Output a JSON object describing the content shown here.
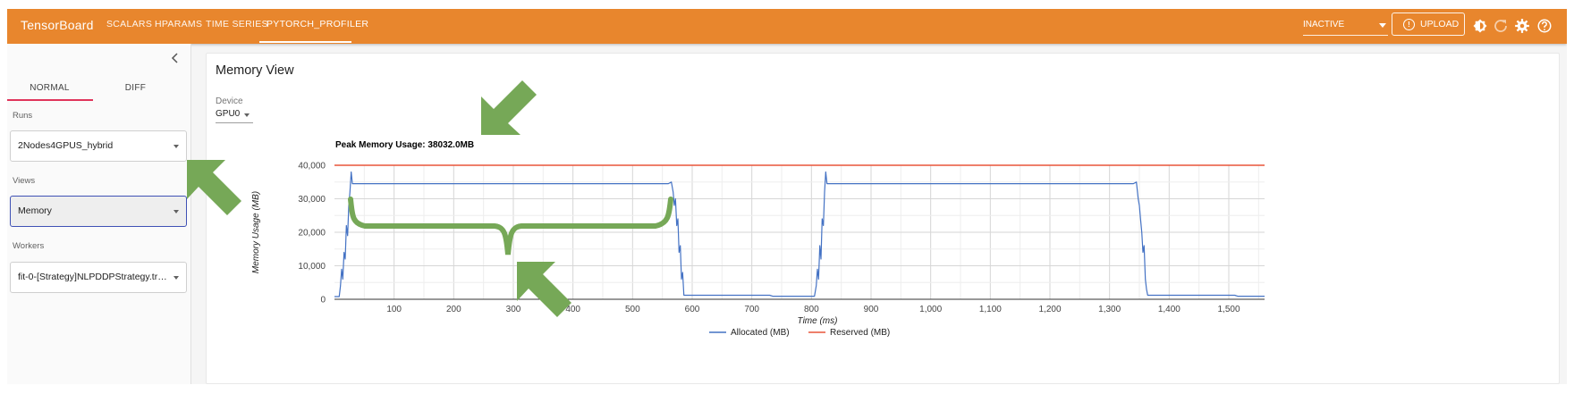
{
  "app": {
    "title": "TensorBoard"
  },
  "nav": {
    "tabs": [
      {
        "label": "SCALARS"
      },
      {
        "label": "HPARAMS"
      },
      {
        "label": "TIME SERIES"
      },
      {
        "label": "PYTORCH_PROFILER",
        "active": true
      }
    ]
  },
  "toolbar": {
    "status_value": "INACTIVE",
    "upload_label": "UPLOAD",
    "icons": [
      "brightness-icon",
      "refresh-icon",
      "settings-icon",
      "help-icon"
    ]
  },
  "sidebar": {
    "mode_tabs": [
      {
        "label": "NORMAL",
        "active": true
      },
      {
        "label": "DIFF"
      }
    ],
    "runs_label": "Runs",
    "runs_value": "2Nodes4GPUS_hybrid",
    "views_label": "Views",
    "views_value": "Memory",
    "workers_label": "Workers",
    "workers_value": "fit-0-[Strategy]NLPDDPStrategy.trai..."
  },
  "main": {
    "title": "Memory View",
    "device_label": "Device",
    "device_value": "GPU0",
    "peak_text": "Peak Memory Usage: 38032.0MB"
  },
  "colors": {
    "topbar": "#e8862d",
    "allocated": "#4472c4",
    "reserved": "#e8553a",
    "annotation": "#76a857",
    "focus": "#3f51b5",
    "tab_underline": "#e0345a"
  },
  "chart_data": {
    "type": "line",
    "xlabel": "Time (ms)",
    "ylabel": "Memory Usage (MB)",
    "xlim": [
      0,
      1560
    ],
    "ylim": [
      0,
      40000
    ],
    "x_ticks": [
      100,
      200,
      300,
      400,
      500,
      600,
      700,
      800,
      900,
      1000,
      1100,
      1200,
      1300,
      1400,
      1500
    ],
    "x_tick_labels": [
      "100",
      "200",
      "300",
      "400",
      "500",
      "600",
      "700",
      "800",
      "900",
      "1,000",
      "1,100",
      "1,200",
      "1,300",
      "1,400",
      "1,500"
    ],
    "y_ticks": [
      0,
      10000,
      20000,
      30000,
      40000
    ],
    "y_tick_labels": [
      "0",
      "10,000",
      "20,000",
      "30,000",
      "40,000"
    ],
    "grid": true,
    "legend_position": "bottom",
    "series": [
      {
        "name": "Allocated (MB)",
        "color": "#4472c4",
        "points": [
          [
            0,
            800
          ],
          [
            8,
            800
          ],
          [
            10,
            4000
          ],
          [
            12,
            9000
          ],
          [
            14,
            6000
          ],
          [
            16,
            14000
          ],
          [
            18,
            12000
          ],
          [
            20,
            22000
          ],
          [
            22,
            19000
          ],
          [
            24,
            28000
          ],
          [
            26,
            32000
          ],
          [
            28,
            38000
          ],
          [
            30,
            34500
          ],
          [
            32,
            34500
          ],
          [
            560,
            34500
          ],
          [
            565,
            35000
          ],
          [
            568,
            32000
          ],
          [
            570,
            28000
          ],
          [
            572,
            30000
          ],
          [
            574,
            22000
          ],
          [
            576,
            24000
          ],
          [
            578,
            14000
          ],
          [
            580,
            16000
          ],
          [
            582,
            6000
          ],
          [
            584,
            8000
          ],
          [
            586,
            1200
          ],
          [
            590,
            1200
          ],
          [
            730,
            1200
          ],
          [
            735,
            900
          ],
          [
            805,
            900
          ],
          [
            808,
            4000
          ],
          [
            810,
            9000
          ],
          [
            812,
            6000
          ],
          [
            814,
            16000
          ],
          [
            816,
            12000
          ],
          [
            818,
            24000
          ],
          [
            820,
            22000
          ],
          [
            822,
            32000
          ],
          [
            824,
            38000
          ],
          [
            826,
            34500
          ],
          [
            828,
            34500
          ],
          [
            1340,
            34500
          ],
          [
            1345,
            35000
          ],
          [
            1348,
            30000
          ],
          [
            1350,
            28000
          ],
          [
            1352,
            24000
          ],
          [
            1354,
            20000
          ],
          [
            1356,
            14000
          ],
          [
            1358,
            16000
          ],
          [
            1360,
            6000
          ],
          [
            1362,
            3000
          ],
          [
            1364,
            1200
          ],
          [
            1510,
            1200
          ],
          [
            1515,
            900
          ],
          [
            1560,
            900
          ]
        ]
      },
      {
        "name": "Reserved (MB)",
        "color": "#e8553a",
        "points": [
          [
            0,
            40000
          ],
          [
            1560,
            40000
          ]
        ]
      }
    ]
  }
}
